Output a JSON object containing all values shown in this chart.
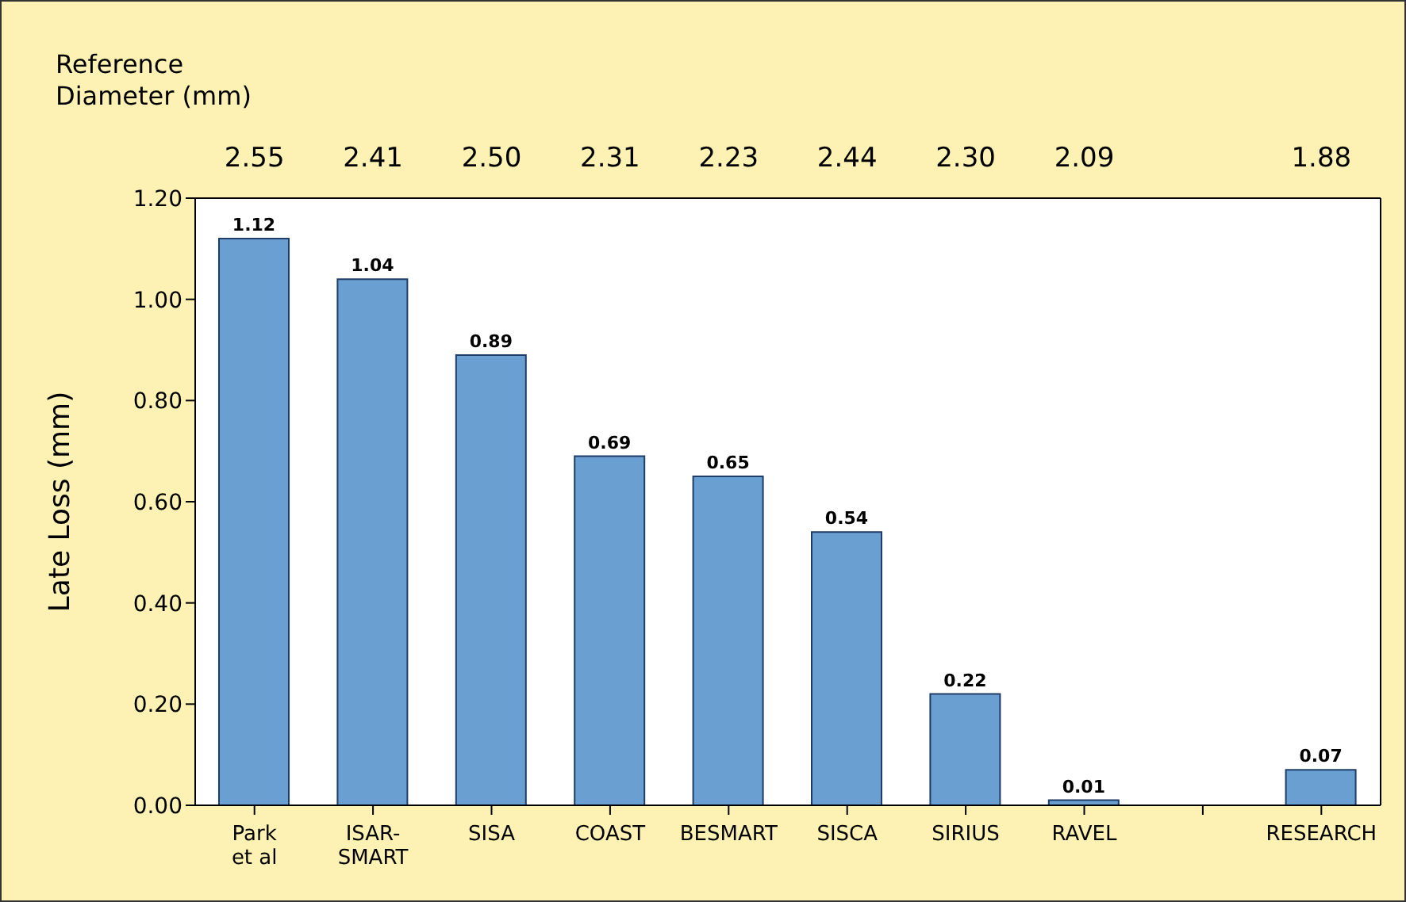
{
  "chart_data": {
    "type": "bar",
    "ylabel": "Late Loss (mm)",
    "categories": [
      "Park et al",
      "ISAR-SMART",
      "SISA",
      "COAST",
      "BESMART",
      "SISCA",
      "SIRIUS",
      "RAVEL",
      null,
      "RESEARCH"
    ],
    "values": [
      1.12,
      1.04,
      0.89,
      0.69,
      0.65,
      0.54,
      0.22,
      0.01,
      null,
      0.07
    ],
    "color": "#6a9fd2",
    "data_labels": true,
    "grid": false,
    "legend": false,
    "ylim": [
      0,
      1.2
    ],
    "yticks": [
      {
        "value": 0,
        "label": "0.00"
      },
      {
        "value": 0.2,
        "label": "0.20"
      },
      {
        "value": 0.4,
        "label": "0.40"
      },
      {
        "value": 0.6,
        "label": "0.60"
      },
      {
        "value": 0.8,
        "label": "0.80"
      },
      {
        "value": 1,
        "label": "1.00"
      },
      {
        "value": 1.2,
        "label": "1.20"
      }
    ],
    "annotations": [
      "Reference Diameter (mm)",
      "2.55",
      "2.41",
      "2.50",
      "2.31",
      "2.23",
      "2.44",
      "2.30",
      "2.09",
      "1.88"
    ]
  }
}
